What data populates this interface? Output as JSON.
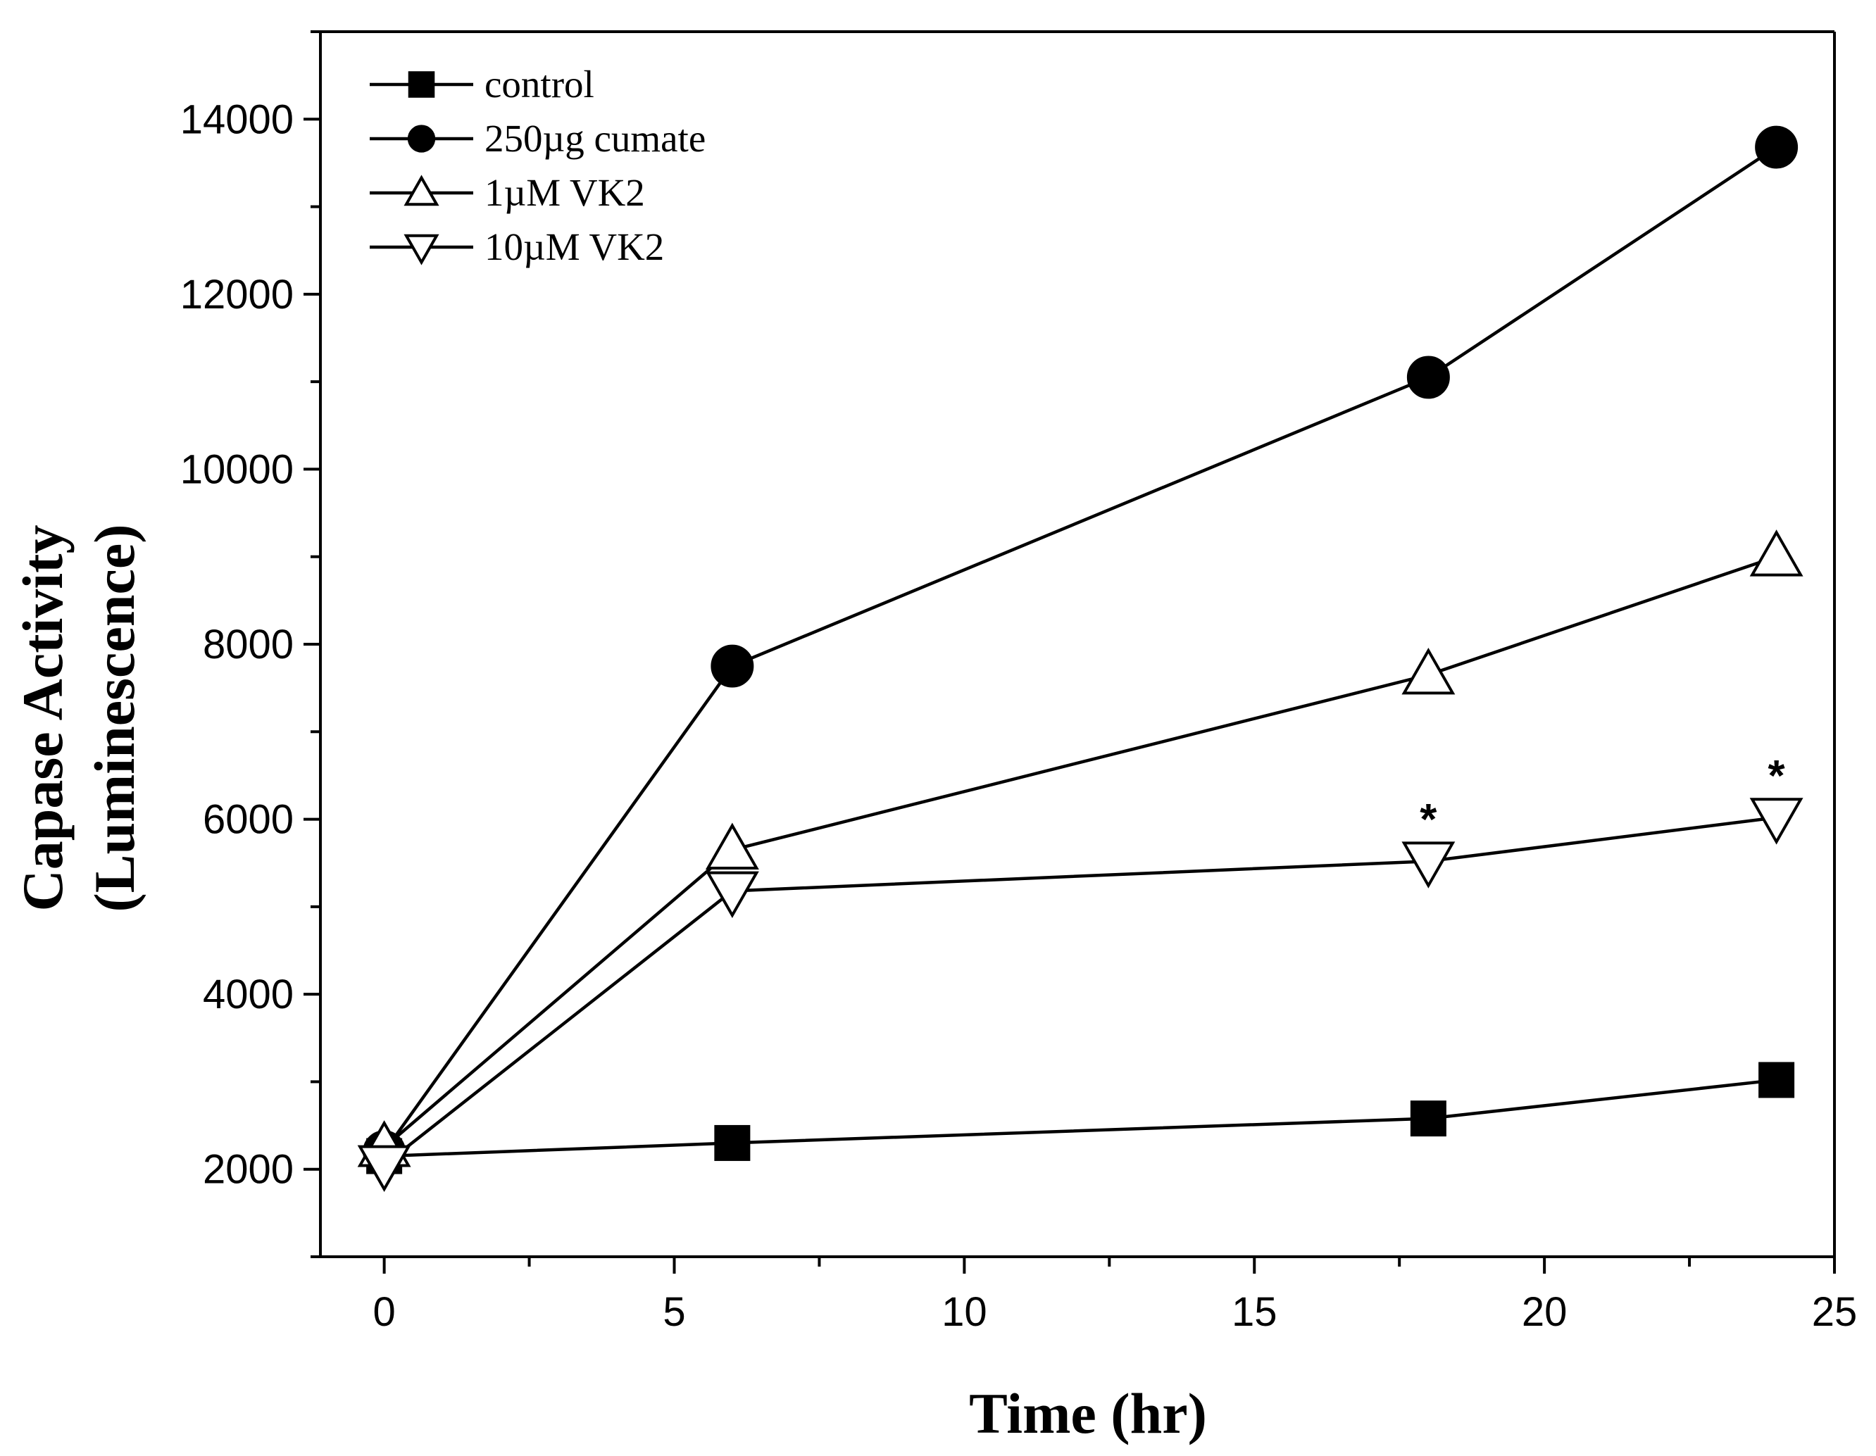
{
  "chart_data": {
    "type": "line",
    "title": "",
    "xlabel": "Time (hr)",
    "ylabel_line1": "Capase Activity",
    "ylabel_line2": "(Luminescence)",
    "xlim": [
      -1.1,
      25
    ],
    "ylim": [
      1000,
      15000
    ],
    "x_ticks": [
      0,
      5,
      10,
      15,
      20,
      25
    ],
    "x_minor_ticks": [
      2.5,
      7.5,
      12.5,
      17.5,
      22.5
    ],
    "x_tick_labels": [
      "0",
      "5",
      "10",
      "15",
      "20",
      "25"
    ],
    "y_ticks": [
      2000,
      4000,
      6000,
      8000,
      10000,
      12000,
      14000
    ],
    "y_minor_ticks": [
      1000,
      3000,
      5000,
      7000,
      9000,
      11000,
      13000,
      15000
    ],
    "y_tick_labels": [
      "2000",
      "4000",
      "6000",
      "8000",
      "10000",
      "12000",
      "14000"
    ],
    "grid": false,
    "legend_position": "top-left",
    "series": [
      {
        "name": "control",
        "marker": "square",
        "x": [
          0,
          6,
          18,
          24
        ],
        "values": [
          2150,
          2300,
          2580,
          3020
        ]
      },
      {
        "name": "250µg cumate",
        "marker": "circle",
        "x": [
          0,
          6,
          18,
          24
        ],
        "values": [
          2200,
          7750,
          11050,
          13680
        ]
      },
      {
        "name": "1µM VK2",
        "marker": "triangle-up",
        "x": [
          0,
          6,
          18,
          24
        ],
        "values": [
          2250,
          5650,
          7650,
          9000
        ]
      },
      {
        "name": "10µM VK2",
        "marker": "triangle-down",
        "x": [
          0,
          6,
          18,
          24
        ],
        "values": [
          2050,
          5180,
          5520,
          6020
        ]
      }
    ],
    "annotations": [
      {
        "text": "*",
        "x": 18,
        "y": 6150
      },
      {
        "text": "*",
        "x": 24,
        "y": 6650
      }
    ]
  }
}
